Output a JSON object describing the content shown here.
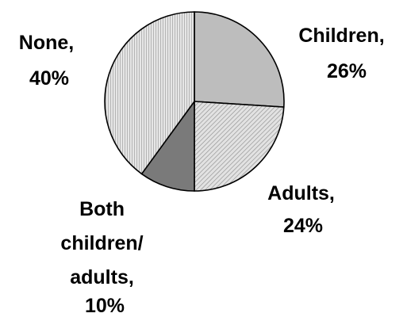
{
  "chart_data": {
    "type": "pie",
    "start_angle_deg": 0,
    "direction": "clockwise",
    "slices": [
      {
        "label": "Children,",
        "value_label": "26%",
        "value": 26,
        "color": "#bdbdbd",
        "pattern": "solid"
      },
      {
        "label": "Adults,",
        "value_label": "24%",
        "value": 24,
        "color": "#d4d4d4",
        "pattern": "diagonal-hatch"
      },
      {
        "label": "Both children/ adults,",
        "value_label": "10%",
        "value": 10,
        "color": "#7a7a7a",
        "pattern": "solid"
      },
      {
        "label": "None,",
        "value_label": "40%",
        "value": 40,
        "color": "#dcdcdc",
        "pattern": "vertical-stripes"
      }
    ],
    "legend": "none",
    "grid": false
  }
}
